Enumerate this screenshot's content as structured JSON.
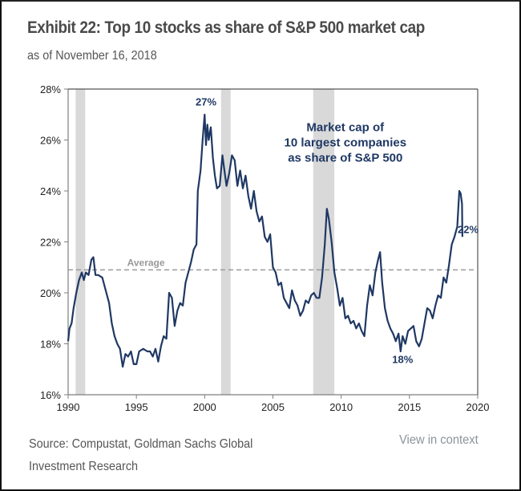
{
  "header": {
    "title": "Exhibit 22: Top 10 stocks as share of S&P 500 market cap",
    "subtitle": "as of November 16, 2018"
  },
  "footer": {
    "source_line1": "Source: Compustat, Goldman Sachs Global",
    "source_line2": "Investment Research",
    "context_link": "View in context"
  },
  "colors": {
    "series": "#1f3864",
    "recession": "#d9d9d9",
    "average": "#9a9a9a",
    "axis": "#7f7f7f"
  },
  "chart_data": {
    "type": "line",
    "title": "Top 10 stocks as share of S&P 500 market cap",
    "xlabel": "",
    "ylabel": "",
    "xlim": [
      1990,
      2020
    ],
    "ylim": [
      16,
      28
    ],
    "x_ticks": [
      1990,
      1995,
      2000,
      2005,
      2010,
      2015,
      2020
    ],
    "x_tick_labels": [
      "1990",
      "1995",
      "2000",
      "2005",
      "2010",
      "2015",
      "2020"
    ],
    "y_ticks": [
      16,
      18,
      20,
      22,
      24,
      26,
      28
    ],
    "y_tick_labels": [
      "16%",
      "18%",
      "20%",
      "22%",
      "24%",
      "26%",
      "28%"
    ],
    "grid": false,
    "legend": "none",
    "series": [
      {
        "name": "Market cap of 10 largest companies as share of S&P 500",
        "x": [
          1990.0,
          1990.1,
          1990.25,
          1990.4,
          1990.6,
          1990.8,
          1991.0,
          1991.15,
          1991.3,
          1991.5,
          1991.7,
          1991.85,
          1992.0,
          1992.2,
          1992.5,
          1992.8,
          1993.0,
          1993.2,
          1993.4,
          1993.6,
          1993.8,
          1994.0,
          1994.2,
          1994.4,
          1994.6,
          1994.8,
          1995.0,
          1995.2,
          1995.5,
          1995.8,
          1996.0,
          1996.2,
          1996.4,
          1996.6,
          1996.8,
          1997.0,
          1997.2,
          1997.4,
          1997.6,
          1997.8,
          1998.0,
          1998.2,
          1998.4,
          1998.6,
          1998.8,
          1999.0,
          1999.2,
          1999.4,
          1999.5,
          1999.7,
          1999.85,
          2000.0,
          2000.1,
          2000.2,
          2000.3,
          2000.45,
          2000.6,
          2000.75,
          2000.9,
          2001.1,
          2001.3,
          2001.45,
          2001.6,
          2001.8,
          2002.0,
          2002.2,
          2002.4,
          2002.6,
          2002.8,
          2003.0,
          2003.2,
          2003.4,
          2003.6,
          2003.8,
          2004.0,
          2004.2,
          2004.4,
          2004.6,
          2004.8,
          2005.0,
          2005.2,
          2005.4,
          2005.6,
          2005.8,
          2006.0,
          2006.2,
          2006.4,
          2006.6,
          2006.8,
          2007.0,
          2007.2,
          2007.4,
          2007.6,
          2007.8,
          2008.0,
          2008.2,
          2008.4,
          2008.6,
          2008.8,
          2008.95,
          2009.1,
          2009.3,
          2009.5,
          2009.7,
          2009.9,
          2010.1,
          2010.3,
          2010.5,
          2010.7,
          2010.9,
          2011.1,
          2011.3,
          2011.5,
          2011.7,
          2011.9,
          2012.1,
          2012.3,
          2012.5,
          2012.7,
          2012.85,
          2013.0,
          2013.2,
          2013.4,
          2013.6,
          2013.8,
          2014.0,
          2014.2,
          2014.35,
          2014.5,
          2014.7,
          2014.9,
          2015.1,
          2015.3,
          2015.5,
          2015.7,
          2015.9,
          2016.1,
          2016.3,
          2016.5,
          2016.7,
          2016.9,
          2017.1,
          2017.3,
          2017.5,
          2017.7,
          2017.9,
          2018.1,
          2018.3,
          2018.5,
          2018.65,
          2018.75,
          2018.85,
          2018.88
        ],
        "y": [
          18.1,
          18.6,
          18.8,
          19.4,
          20.0,
          20.5,
          20.8,
          20.5,
          20.8,
          20.7,
          21.3,
          21.4,
          20.7,
          20.7,
          20.6,
          20.0,
          19.6,
          18.8,
          18.3,
          18.0,
          17.8,
          17.1,
          17.6,
          17.5,
          17.7,
          17.2,
          17.2,
          17.7,
          17.8,
          17.7,
          17.7,
          17.5,
          17.8,
          17.3,
          17.9,
          18.3,
          18.2,
          20.0,
          19.8,
          18.7,
          19.3,
          19.6,
          19.5,
          20.4,
          20.8,
          21.2,
          21.7,
          21.9,
          24.0,
          24.8,
          26.0,
          27.0,
          25.8,
          26.6,
          26.0,
          26.5,
          25.3,
          24.6,
          24.1,
          24.2,
          25.4,
          24.8,
          24.2,
          24.7,
          25.4,
          25.2,
          24.2,
          24.8,
          24.1,
          24.6,
          23.8,
          23.3,
          24.0,
          23.2,
          22.8,
          23.0,
          22.2,
          22.0,
          22.3,
          21.0,
          20.8,
          20.3,
          20.4,
          19.8,
          19.6,
          19.4,
          20.1,
          19.7,
          19.5,
          19.1,
          19.3,
          19.7,
          19.6,
          19.9,
          20.0,
          19.8,
          19.8,
          20.6,
          21.9,
          23.3,
          22.9,
          22.0,
          20.8,
          20.2,
          19.5,
          19.8,
          19.0,
          19.1,
          18.8,
          18.9,
          18.6,
          18.8,
          18.5,
          18.3,
          19.5,
          20.3,
          19.9,
          20.8,
          21.3,
          21.6,
          20.4,
          19.4,
          18.9,
          18.6,
          18.4,
          18.1,
          18.4,
          17.7,
          18.3,
          18.0,
          18.5,
          18.6,
          18.7,
          18.1,
          17.9,
          18.2,
          18.8,
          19.4,
          19.3,
          19.0,
          19.5,
          19.9,
          19.8,
          20.6,
          20.4,
          21.1,
          21.9,
          22.2,
          22.6,
          24.0,
          23.9,
          23.5,
          22.2
        ],
        "color": "#1f3864"
      }
    ],
    "reference_lines": [
      {
        "name": "Average",
        "value": 20.9,
        "style": "dashed"
      }
    ],
    "shaded_periods": [
      {
        "label": "recession",
        "start": 1990.55,
        "end": 1991.25
      },
      {
        "label": "recession",
        "start": 2001.2,
        "end": 2001.9
      },
      {
        "label": "recession",
        "start": 2007.95,
        "end": 2009.5
      }
    ],
    "annotations": [
      {
        "text": "Market cap of",
        "x": 2010.3,
        "y": 26.35,
        "style": "bold-large"
      },
      {
        "text": "10 largest companies",
        "x": 2010.3,
        "y": 25.75,
        "style": "bold-large"
      },
      {
        "text": "as share of S&P 500",
        "x": 2010.3,
        "y": 25.15,
        "style": "bold-large"
      },
      {
        "text": "27%",
        "x": 2000.1,
        "y": 27.35,
        "style": "bold"
      },
      {
        "text": "18%",
        "x": 2014.5,
        "y": 17.25,
        "style": "bold"
      },
      {
        "text": "22%",
        "x": 2019.3,
        "y": 22.35,
        "style": "bold"
      },
      {
        "text": "Average",
        "x": 1995.7,
        "y": 21.05,
        "style": "gray"
      }
    ]
  }
}
